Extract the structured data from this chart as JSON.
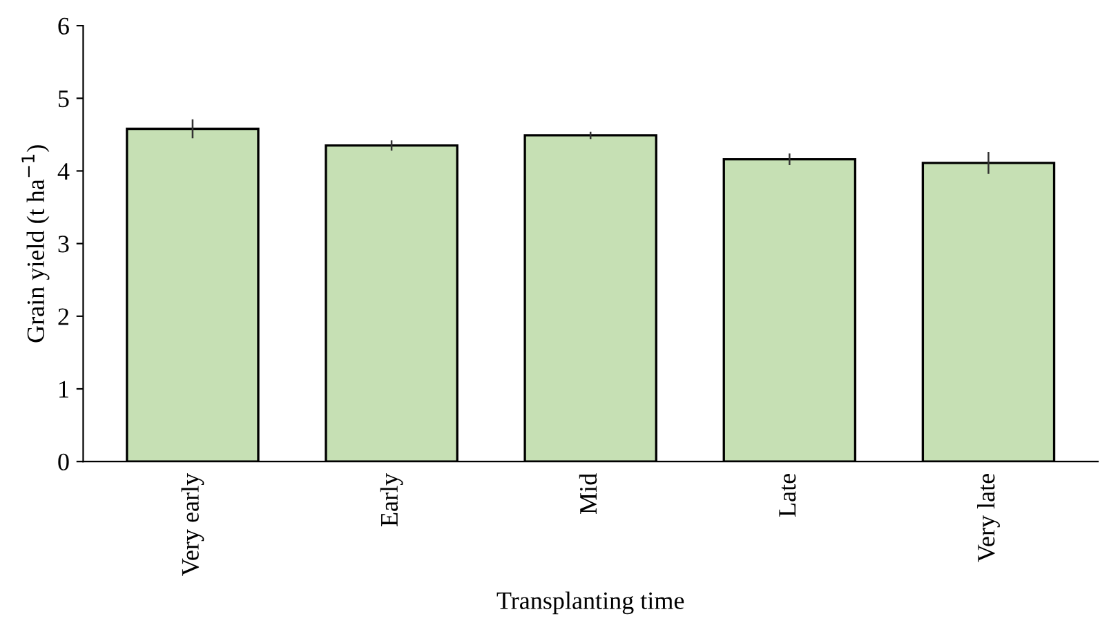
{
  "chart_data": {
    "type": "bar",
    "xlabel": "Transplanting time",
    "ylabel": "Grain yield (t ha$^{−1}$)",
    "categories": [
      "Very early",
      "Early",
      "Mid",
      "Late",
      "Very late"
    ],
    "values": [
      4.58,
      4.35,
      4.49,
      4.16,
      4.11
    ],
    "errors": [
      0.13,
      0.07,
      0.05,
      0.08,
      0.15
    ],
    "color": "#c6e0b4",
    "ylim": [
      0,
      6
    ],
    "yticks": [
      0,
      1,
      2,
      3,
      4,
      5,
      6
    ],
    "grid": false,
    "legend": false
  }
}
